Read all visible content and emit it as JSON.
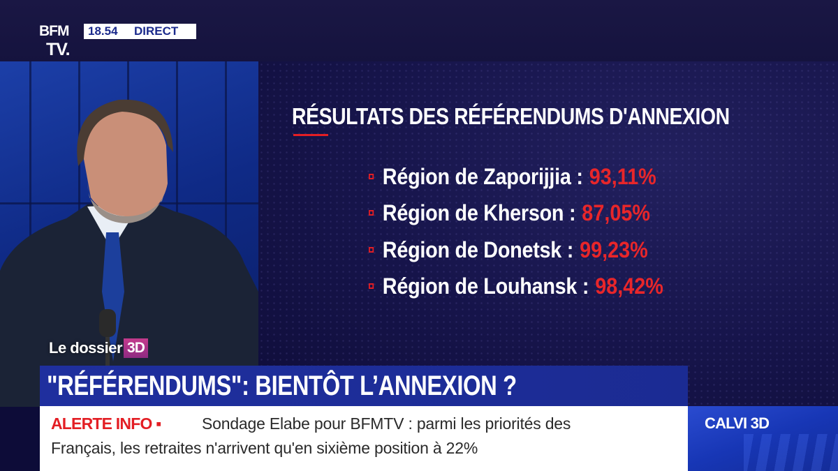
{
  "channel": {
    "logo_line1": "BFM",
    "logo_line2": "TV.",
    "time": "18.54",
    "live_label": "DIRECT"
  },
  "results": {
    "title": "RÉSULTATS DES RÉFÉRENDUMS D'ANNEXION",
    "items": [
      {
        "label": "Région de Zaporijjia :",
        "value": "93,11%"
      },
      {
        "label": "Région de Kherson :",
        "value": "87,05%"
      },
      {
        "label": "Région de Donetsk :",
        "value": "99,23%"
      },
      {
        "label": "Région de Louhansk :",
        "value": "98,42%"
      }
    ]
  },
  "segment": {
    "label": "Le dossier",
    "badge": "3D"
  },
  "headline": "\"RÉFÉRENDUMS\": BIENTÔT L’ANNEXION ?",
  "ticker": {
    "alert_label": "ALERTE INFO ▪",
    "line1": "Sondage Elabe pour BFMTV : parmi les priorités des",
    "line2": "Français, les retraites n'arrivent qu'en sixième position à 22%"
  },
  "program": {
    "label": "CALVI 3D"
  },
  "colors": {
    "accent_red": "#e31e24",
    "brand_blue": "#1f2f9e",
    "panel_navy": "#16144a"
  }
}
